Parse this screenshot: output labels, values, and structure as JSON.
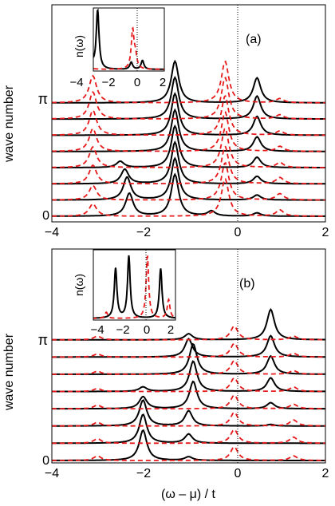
{
  "figure": {
    "ylabel_text": "wave number",
    "xlabel_text": "(ω – μ) / t"
  },
  "chart_data": [
    {
      "type": "line",
      "panel_label": "(a)",
      "xlabel": "",
      "ylabel": "wave number",
      "xlim": [
        -4,
        2
      ],
      "xticks": [
        "−4",
        "−2",
        "0",
        "2"
      ],
      "ytick_labels": [
        "0",
        "π"
      ],
      "grid": false,
      "vertical_reference_line_x": 0,
      "curve_count": 8,
      "series": [
        {
          "style": "solid black",
          "peaks_bottom_to_top": [
            [
              [
                -2.3,
                0.55
              ],
              [
                -1.3,
                1.0
              ],
              [
                -0.5,
                0.12
              ],
              [
                0.5,
                0.08
              ]
            ],
            [
              [
                -2.35,
                0.55
              ],
              [
                -1.3,
                1.0
              ],
              [
                0.5,
                0.12
              ]
            ],
            [
              [
                -2.4,
                0.35
              ],
              [
                -1.3,
                1.0
              ],
              [
                0.5,
                0.18
              ]
            ],
            [
              [
                -2.5,
                0.15
              ],
              [
                -1.3,
                1.0
              ],
              [
                0.5,
                0.25
              ]
            ],
            [
              [
                -1.3,
                1.0
              ],
              [
                0.5,
                0.35
              ]
            ],
            [
              [
                -1.3,
                1.0
              ],
              [
                0.5,
                0.45
              ]
            ],
            [
              [
                -1.3,
                1.0
              ],
              [
                0.5,
                0.55
              ]
            ],
            [
              [
                -1.3,
                1.0
              ],
              [
                0.5,
                0.6
              ]
            ]
          ]
        },
        {
          "style": "dashed red",
          "peaks_bottom_to_top": [
            [
              [
                -3.1,
                0.3
              ],
              [
                -0.2,
                0.9
              ],
              [
                1.0,
                0.15
              ]
            ],
            [
              [
                -3.1,
                0.35
              ],
              [
                -0.2,
                0.9
              ],
              [
                1.0,
                0.15
              ]
            ],
            [
              [
                -3.1,
                0.45
              ],
              [
                -0.2,
                0.9
              ],
              [
                1.0,
                0.15
              ]
            ],
            [
              [
                -3.1,
                0.5
              ],
              [
                -0.2,
                0.95
              ],
              [
                1.0,
                0.12
              ]
            ],
            [
              [
                -3.1,
                0.55
              ],
              [
                -0.2,
                0.95
              ],
              [
                1.0,
                0.12
              ]
            ],
            [
              [
                -3.1,
                0.6
              ],
              [
                -0.2,
                0.95
              ],
              [
                1.0,
                0.1
              ]
            ],
            [
              [
                -3.1,
                0.65
              ],
              [
                -0.2,
                1.0
              ],
              [
                1.0,
                0.1
              ]
            ],
            [
              [
                -3.1,
                0.65
              ],
              [
                -0.2,
                1.0
              ],
              [
                1.0,
                0.1
              ]
            ]
          ]
        }
      ],
      "inset": {
        "ylabel": "n(ω)",
        "xticks": [
          "−4",
          "−2",
          "0",
          "2"
        ],
        "xlim": [
          -4.5,
          2.5
        ],
        "vertical_reference_line_x": 0,
        "series": [
          {
            "style": "solid black",
            "peaks": [
              [
                -3.0,
                0.12
              ],
              [
                -2.6,
                1.0
              ],
              [
                -0.2,
                0.12
              ],
              [
                0.6,
                0.15
              ]
            ]
          },
          {
            "style": "dashed red",
            "peaks": [
              [
                -4.1,
                0.3
              ],
              [
                -3.5,
                0.25
              ],
              [
                -0.1,
                0.65
              ],
              [
                0.1,
                0.2
              ]
            ]
          }
        ]
      }
    },
    {
      "type": "line",
      "panel_label": "(b)",
      "xlabel": "(ω – μ) / t",
      "ylabel": "wave number",
      "xlim": [
        -4,
        2
      ],
      "xticks": [
        "−4",
        "−2",
        "0",
        "2"
      ],
      "ytick_labels": [
        "0",
        "π"
      ],
      "grid": false,
      "vertical_reference_line_x": 0,
      "curve_count": 8,
      "series": [
        {
          "style": "solid black",
          "peaks_bottom_to_top": [
            [
              [
                -2.0,
                1.0
              ],
              [
                -1.0,
                0.12
              ]
            ],
            [
              [
                -2.0,
                0.95
              ],
              [
                -1.0,
                0.3
              ]
            ],
            [
              [
                -2.0,
                0.85
              ],
              [
                -1.0,
                0.5
              ],
              [
                0.8,
                0.05
              ]
            ],
            [
              [
                -2.0,
                0.4
              ],
              [
                -0.9,
                0.9
              ],
              [
                0.8,
                0.2
              ]
            ],
            [
              [
                -2.0,
                0.15
              ],
              [
                -0.9,
                1.0
              ],
              [
                0.8,
                0.45
              ]
            ],
            [
              [
                -0.9,
                1.0
              ],
              [
                0.8,
                0.6
              ]
            ],
            [
              [
                -1.0,
                0.6
              ],
              [
                0.8,
                0.7
              ]
            ],
            [
              [
                -1.0,
                0.2
              ],
              [
                0.8,
                1.0
              ]
            ]
          ]
        },
        {
          "style": "dashed red",
          "peaks_bottom_to_top": [
            [
              [
                -3.0,
                0.15
              ],
              [
                0.0,
                0.45
              ],
              [
                1.3,
                0.15
              ]
            ],
            [
              [
                -3.0,
                0.15
              ],
              [
                0.0,
                0.45
              ],
              [
                1.3,
                0.2
              ]
            ],
            [
              [
                -3.0,
                0.12
              ],
              [
                0.0,
                0.45
              ],
              [
                1.3,
                0.2
              ]
            ],
            [
              [
                -3.0,
                0.12
              ],
              [
                0.0,
                0.45
              ],
              [
                1.3,
                0.15
              ]
            ],
            [
              [
                -3.0,
                0.1
              ],
              [
                0.0,
                0.45
              ],
              [
                1.3,
                0.15
              ]
            ],
            [
              [
                -3.0,
                0.1
              ],
              [
                0.0,
                0.45
              ],
              [
                1.3,
                0.12
              ]
            ],
            [
              [
                -3.0,
                0.1
              ],
              [
                0.0,
                0.45
              ],
              [
                1.3,
                0.12
              ]
            ],
            [
              [
                -3.0,
                0.12
              ],
              [
                0.0,
                0.45
              ],
              [
                1.3,
                0.12
              ]
            ]
          ]
        }
      ],
      "inset": {
        "ylabel": "n(ω)",
        "xticks": [
          "−4",
          "−2",
          "0",
          "2"
        ],
        "xlim": [
          -4.2,
          2.6
        ],
        "vertical_reference_line_x": 0,
        "series": [
          {
            "style": "solid black",
            "peaks": [
              [
                -2.4,
                0.8
              ],
              [
                -1.4,
                1.0
              ],
              [
                1.0,
                0.8
              ]
            ]
          },
          {
            "style": "dashed red",
            "peaks": [
              [
                -3.1,
                0.1
              ],
              [
                0.0,
                1.0
              ],
              [
                1.6,
                0.3
              ]
            ]
          }
        ]
      }
    }
  ]
}
